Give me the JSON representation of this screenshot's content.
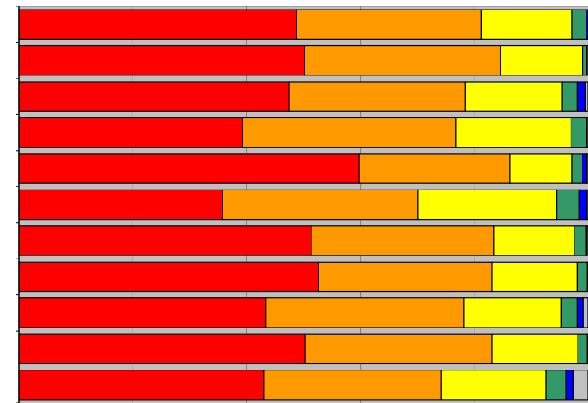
{
  "chart_data": {
    "type": "bar",
    "orientation": "horizontal",
    "stacked": true,
    "normalized": true,
    "title": "",
    "xlabel": "",
    "ylabel": "",
    "xlim": [
      0,
      100
    ],
    "grid": true,
    "legend": "none",
    "categories": [
      "",
      "",
      "",
      "",
      "",
      "",
      "",
      "",
      "",
      "",
      ""
    ],
    "series": [
      {
        "color": "#ff0000",
        "values": [
          48.8,
          50.2,
          47.5,
          39.3,
          59.8,
          35.8,
          51.4,
          52.6,
          43.4,
          50.3,
          43.0
        ]
      },
      {
        "color": "#ff9900",
        "values": [
          32.4,
          34.4,
          30.9,
          37.5,
          26.5,
          34.3,
          32.1,
          30.5,
          34.8,
          32.8,
          31.2
        ]
      },
      {
        "color": "#ffff00",
        "values": [
          16.0,
          14.5,
          17.0,
          20.2,
          10.9,
          24.4,
          14.1,
          15.0,
          17.1,
          15.1,
          18.4
        ]
      },
      {
        "color": "#339966",
        "values": [
          2.5,
          0.7,
          2.7,
          2.8,
          1.8,
          4.0,
          2.0,
          1.8,
          2.8,
          1.7,
          3.5
        ]
      },
      {
        "color": "#0000ff",
        "values": [
          0.3,
          0.0,
          1.4,
          0.0,
          0.8,
          1.3,
          0.2,
          0.0,
          1.1,
          0.0,
          1.3
        ]
      },
      {
        "color": "#c0c0c0",
        "values": [
          0.0,
          0.2,
          0.5,
          0.2,
          0.2,
          0.2,
          0.2,
          0.1,
          0.8,
          0.1,
          2.6
        ]
      }
    ]
  }
}
